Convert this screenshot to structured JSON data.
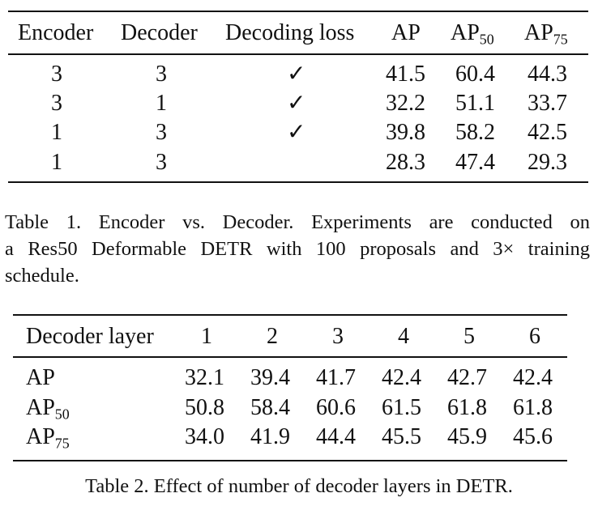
{
  "table1": {
    "headers": [
      "Encoder",
      "Decoder",
      "Decoding loss",
      "AP",
      "AP",
      "AP"
    ],
    "header_subscripts": [
      "",
      "",
      "",
      "",
      "50",
      "75"
    ],
    "rows": [
      {
        "encoder": "3",
        "decoder": "3",
        "loss": "✓",
        "ap": "41.5",
        "ap50": "60.4",
        "ap75": "44.3"
      },
      {
        "encoder": "3",
        "decoder": "1",
        "loss": "✓",
        "ap": "32.2",
        "ap50": "51.1",
        "ap75": "33.7"
      },
      {
        "encoder": "1",
        "decoder": "3",
        "loss": "✓",
        "ap": "39.8",
        "ap50": "58.2",
        "ap75": "42.5"
      },
      {
        "encoder": "1",
        "decoder": "3",
        "loss": "",
        "ap": "28.3",
        "ap50": "47.4",
        "ap75": "29.3"
      }
    ]
  },
  "caption1_lines": [
    "Table 1. Encoder vs.  Decoder.  Experiments are conducted on",
    "a Res50 Deformable DETR with 100 proposals and 3× training",
    "schedule."
  ],
  "table2": {
    "corner_header": "Decoder layer",
    "layers": [
      "1",
      "2",
      "3",
      "4",
      "5",
      "6"
    ],
    "rows": [
      {
        "label": "AP",
        "sub": "",
        "values": [
          "32.1",
          "39.4",
          "41.7",
          "42.4",
          "42.7",
          "42.4"
        ]
      },
      {
        "label": "AP",
        "sub": "50",
        "values": [
          "50.8",
          "58.4",
          "60.6",
          "61.5",
          "61.8",
          "61.8"
        ]
      },
      {
        "label": "AP",
        "sub": "75",
        "values": [
          "34.0",
          "41.9",
          "44.4",
          "45.5",
          "45.9",
          "45.6"
        ]
      }
    ]
  },
  "caption2": "Table 2. Effect of number of decoder layers in DETR."
}
